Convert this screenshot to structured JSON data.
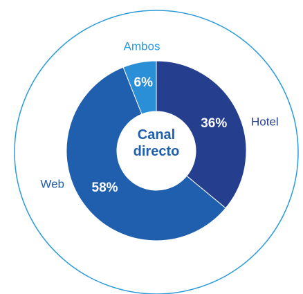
{
  "chart_data": {
    "type": "donut",
    "title": "Canal directo",
    "categories": [
      "Hotel",
      "Web",
      "Ambos"
    ],
    "values": [
      36,
      58,
      6
    ],
    "value_labels": [
      "36%",
      "58%",
      "6%"
    ],
    "colors": [
      "#253f8e",
      "#1f5fae",
      "#2a8fd6"
    ],
    "label_colors": [
      "#253f8e",
      "#1f5fae",
      "#2a9bd8"
    ]
  }
}
